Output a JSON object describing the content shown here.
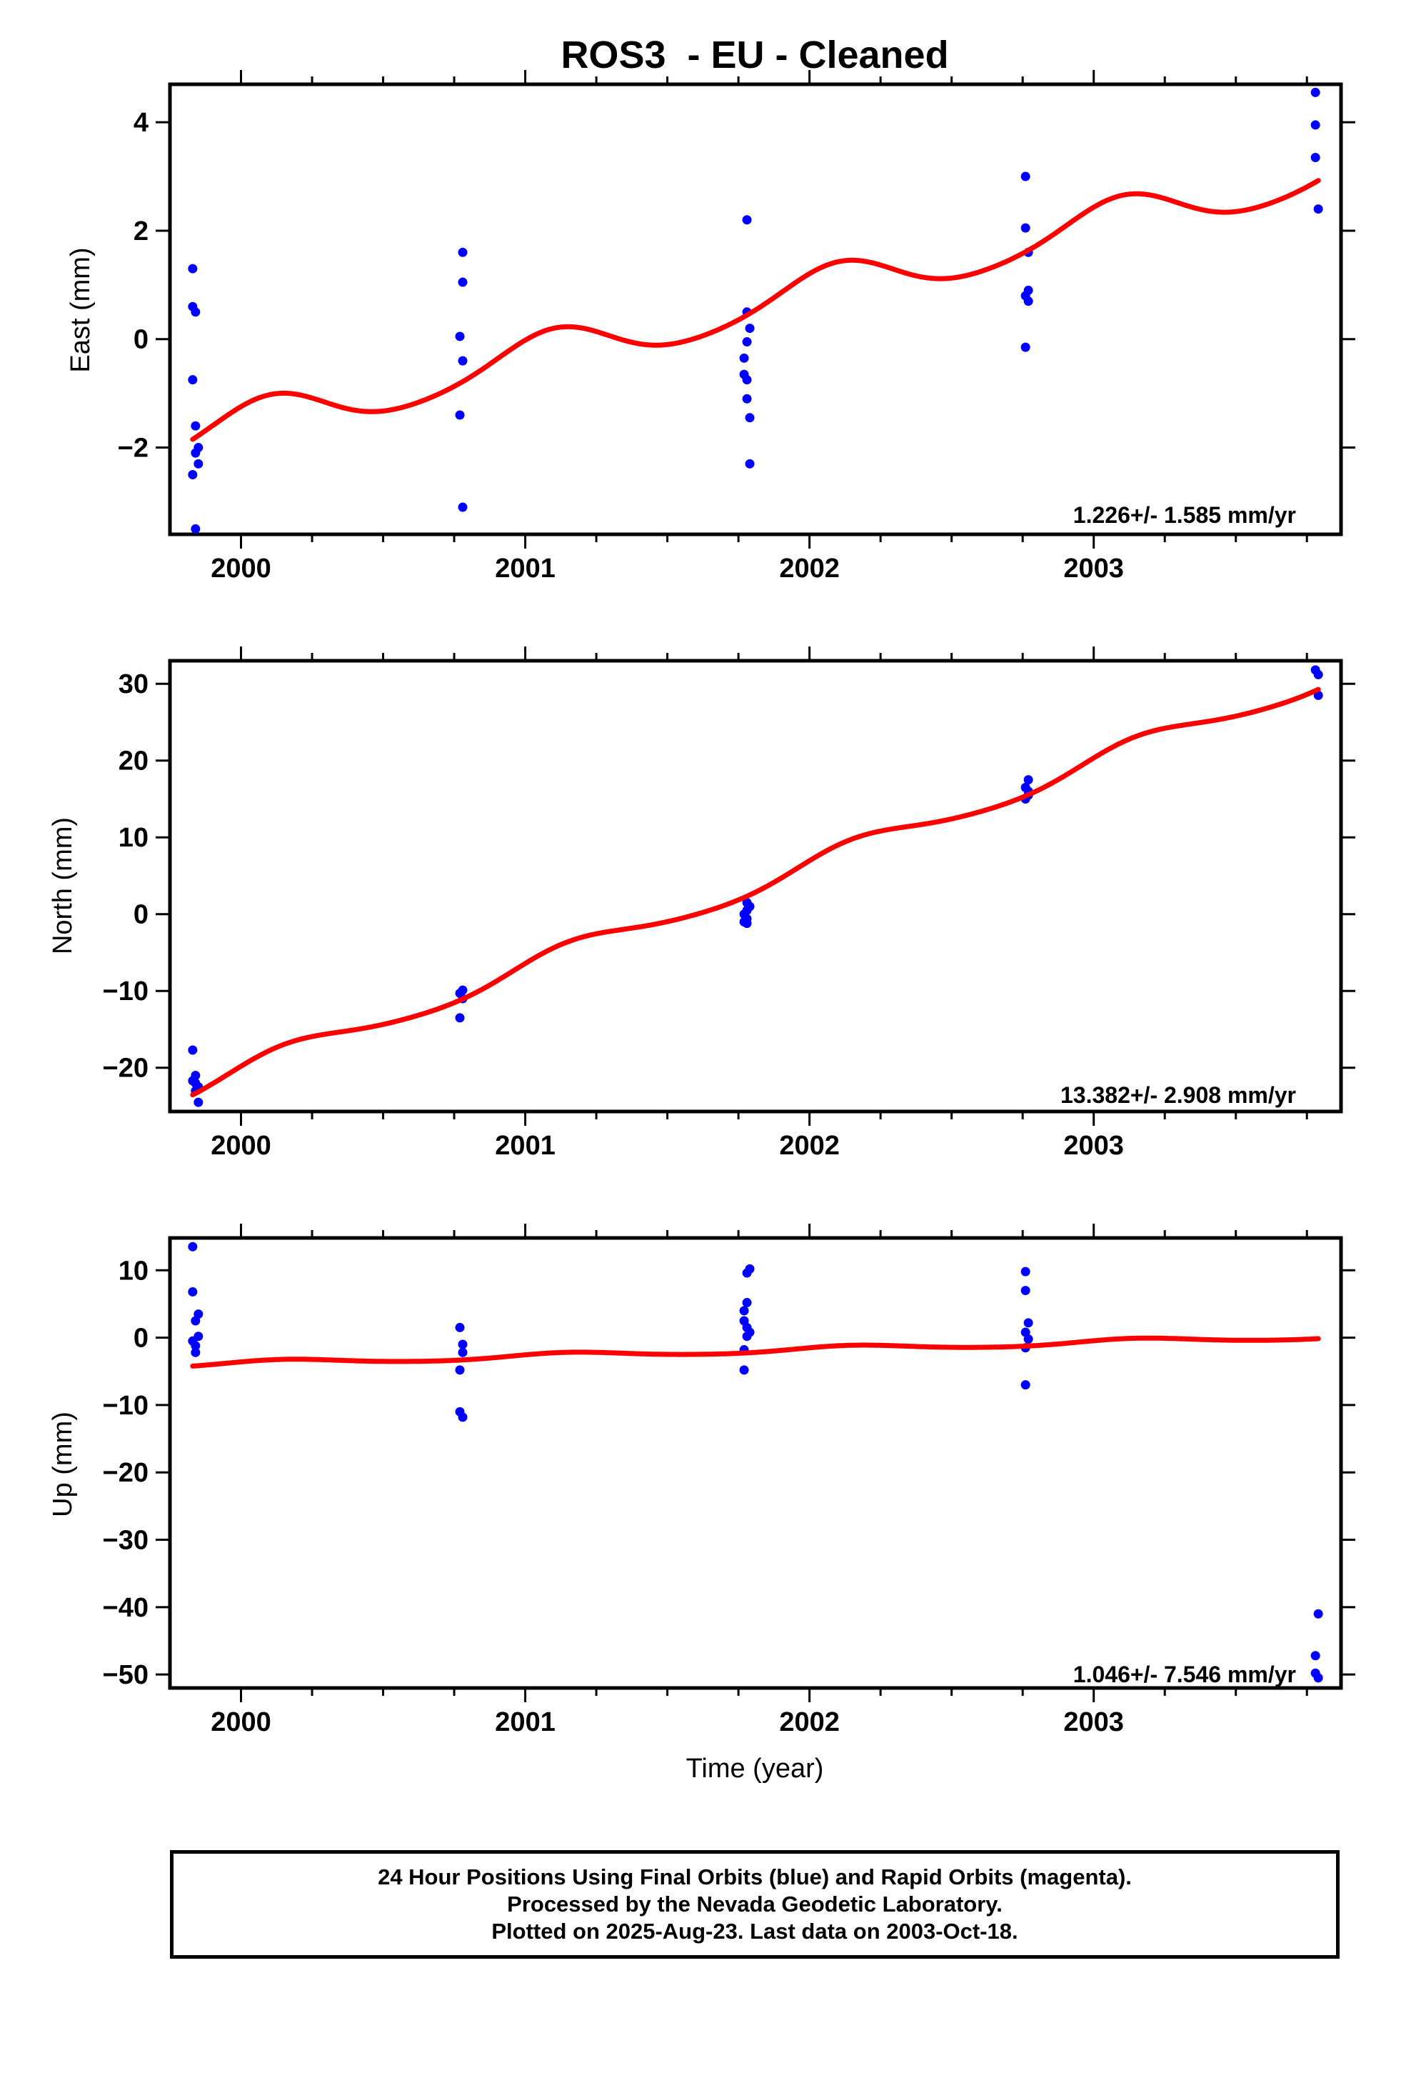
{
  "chart_data": {
    "type": "scatter",
    "title": "ROS3  - EU - Cleaned",
    "xlabel": "Time (year)",
    "xlim": [
      1999.75,
      2003.87
    ],
    "xticks": [
      2000,
      2001,
      2002,
      2003
    ],
    "x_tick_labels": [
      "2000",
      "2001",
      "2002",
      "2003"
    ],
    "panels": [
      {
        "name": "east",
        "ylabel": "East (mm)",
        "ylim": [
          -3.6,
          4.7
        ],
        "yticks": [
          -2,
          0,
          2,
          4
        ],
        "y_tick_labels": [
          "−2",
          "0",
          "2",
          "4"
        ],
        "rate_label": "1.226+/- 1.585 mm/yr",
        "points": [
          [
            1999.83,
            1.3
          ],
          [
            1999.83,
            0.6
          ],
          [
            1999.84,
            0.5
          ],
          [
            1999.83,
            -0.75
          ],
          [
            1999.84,
            -1.6
          ],
          [
            1999.85,
            -2.0
          ],
          [
            1999.84,
            -2.1
          ],
          [
            1999.85,
            -2.3
          ],
          [
            1999.83,
            -2.5
          ],
          [
            1999.84,
            -3.5
          ],
          [
            2000.78,
            1.6
          ],
          [
            2000.78,
            1.05
          ],
          [
            2000.77,
            0.05
          ],
          [
            2000.78,
            -0.4
          ],
          [
            2000.77,
            -1.4
          ],
          [
            2000.78,
            -3.1
          ],
          [
            2001.78,
            2.2
          ],
          [
            2001.78,
            0.5
          ],
          [
            2001.79,
            0.2
          ],
          [
            2001.78,
            -0.05
          ],
          [
            2001.77,
            -0.35
          ],
          [
            2001.77,
            -0.65
          ],
          [
            2001.78,
            -0.75
          ],
          [
            2001.78,
            -1.1
          ],
          [
            2001.79,
            -1.45
          ],
          [
            2001.79,
            -2.3
          ],
          [
            2002.76,
            3.0
          ],
          [
            2002.76,
            2.05
          ],
          [
            2002.77,
            1.6
          ],
          [
            2002.77,
            0.9
          ],
          [
            2002.76,
            0.8
          ],
          [
            2002.77,
            0.7
          ],
          [
            2002.76,
            -0.15
          ],
          [
            2003.78,
            4.55
          ],
          [
            2003.78,
            3.95
          ],
          [
            2003.78,
            3.35
          ],
          [
            2003.79,
            2.4
          ]
        ],
        "model": {
          "offset": -1.8,
          "rate": 1.226,
          "t0": 1999.83,
          "amp": 0.4,
          "phase": 1.05,
          "t_end": 2003.79
        }
      },
      {
        "name": "north",
        "ylabel": "North (mm)",
        "ylim": [
          -25.7,
          33.0
        ],
        "yticks": [
          -20,
          -10,
          0,
          10,
          20,
          30
        ],
        "y_tick_labels": [
          "−20",
          "−10",
          "0",
          "10",
          "20",
          "30"
        ],
        "rate_label": "13.382+/- 2.908 mm/yr",
        "points": [
          [
            1999.83,
            -17.7
          ],
          [
            1999.84,
            -21.0
          ],
          [
            1999.83,
            -21.7
          ],
          [
            1999.84,
            -22.0
          ],
          [
            1999.85,
            -22.5
          ],
          [
            1999.84,
            -23.0
          ],
          [
            1999.85,
            -24.5
          ],
          [
            2000.78,
            -9.9
          ],
          [
            2000.77,
            -10.3
          ],
          [
            2000.78,
            -11.0
          ],
          [
            2000.77,
            -13.5
          ],
          [
            2001.78,
            1.5
          ],
          [
            2001.79,
            1.0
          ],
          [
            2001.78,
            0.5
          ],
          [
            2001.77,
            0.0
          ],
          [
            2001.78,
            -0.6
          ],
          [
            2001.77,
            -1.0
          ],
          [
            2001.78,
            -1.2
          ],
          [
            2002.77,
            17.5
          ],
          [
            2002.76,
            16.5
          ],
          [
            2002.77,
            16.0
          ],
          [
            2002.77,
            15.5
          ],
          [
            2002.76,
            15.0
          ],
          [
            2003.78,
            31.8
          ],
          [
            2003.79,
            31.2
          ],
          [
            2003.79,
            28.5
          ]
        ],
        "model": {
          "offset": -22.7,
          "rate": 13.382,
          "t0": 1999.83,
          "amp": 1.3,
          "phase": 0.5,
          "t_end": 2003.79
        }
      },
      {
        "name": "up",
        "ylabel": "Up (mm)",
        "ylim": [
          -52.0,
          14.8
        ],
        "yticks": [
          -50,
          -40,
          -30,
          -20,
          -10,
          0,
          10
        ],
        "y_tick_labels": [
          "−50",
          "−40",
          "−30",
          "−20",
          "−10",
          "0",
          "10"
        ],
        "rate_label": "1.046+/- 7.546 mm/yr",
        "points": [
          [
            1999.83,
            13.5
          ],
          [
            1999.83,
            6.8
          ],
          [
            1999.85,
            3.5
          ],
          [
            1999.84,
            2.5
          ],
          [
            1999.85,
            0.2
          ],
          [
            1999.83,
            -0.5
          ],
          [
            1999.84,
            -1.2
          ],
          [
            1999.84,
            -2.2
          ],
          [
            2000.77,
            1.5
          ],
          [
            2000.78,
            -1.0
          ],
          [
            2000.78,
            -2.2
          ],
          [
            2000.77,
            -4.8
          ],
          [
            2000.77,
            -11.0
          ],
          [
            2000.78,
            -11.8
          ],
          [
            2001.79,
            10.2
          ],
          [
            2001.78,
            9.6
          ],
          [
            2001.78,
            5.2
          ],
          [
            2001.77,
            4.0
          ],
          [
            2001.77,
            2.5
          ],
          [
            2001.78,
            1.5
          ],
          [
            2001.79,
            0.8
          ],
          [
            2001.78,
            0.2
          ],
          [
            2001.77,
            -1.8
          ],
          [
            2001.77,
            -4.8
          ],
          [
            2002.76,
            9.8
          ],
          [
            2002.76,
            7.0
          ],
          [
            2002.77,
            2.2
          ],
          [
            2002.76,
            0.8
          ],
          [
            2002.77,
            -0.2
          ],
          [
            2002.76,
            -1.5
          ],
          [
            2002.76,
            -7.0
          ],
          [
            2003.79,
            -41.0
          ],
          [
            2003.78,
            -47.2
          ],
          [
            2003.78,
            -49.8
          ],
          [
            2003.79,
            -50.5
          ]
        ],
        "model": {
          "offset": -4.0,
          "rate": 1.046,
          "t0": 1999.83,
          "amp": 0.4,
          "phase": 0.6,
          "t_end": 2003.79
        }
      }
    ],
    "colors": {
      "points": "#0000ff",
      "model": "#ff0000",
      "axes": "#000000"
    }
  },
  "footer": {
    "line1": "24 Hour Positions Using Final Orbits (blue) and Rapid Orbits (magenta).",
    "line2": "Processed by the Nevada Geodetic Laboratory.",
    "line3": "Plotted on 2025-Aug-23. Last data on 2003-Oct-18."
  }
}
